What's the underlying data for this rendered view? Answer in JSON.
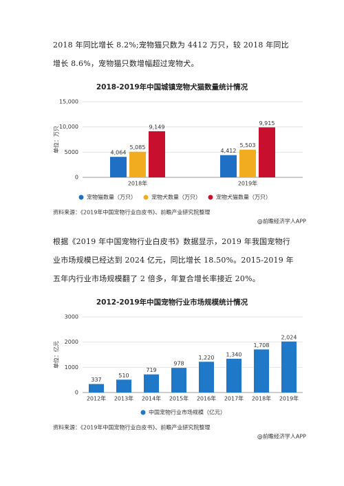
{
  "paragraphs": [
    "2018 年同比增长 8.2%;宠物猫只数为 4412 万只，较 2018 年同比增长 8.6%，宠物猫只数增幅超过宠物犬。",
    "根据《2019 年中国宠物行业白皮书》数据显示，2019 年我国宠物行业市场规模已经达到 2024 亿元，同比增长 18.50%。2015-2019 年五年内行业市场规模翻了 2 倍多，年复合增长率接近 20%。"
  ],
  "chart_data": [
    {
      "type": "bar",
      "title": "2018-2019年中国城镇宠物犬猫数量统计情况",
      "y_label": "单位：万只",
      "categories": [
        "2018年",
        "2019年"
      ],
      "series": [
        {
          "name": "宠物猫数量（万只）",
          "color": "#1f6fc5",
          "values": [
            4064,
            4412
          ],
          "value_labels": [
            "4,064",
            "4,412"
          ]
        },
        {
          "name": "宠物犬数量（万只）",
          "color": "#f2ac1f",
          "values": [
            5085,
            5503
          ],
          "value_labels": [
            "5,085",
            "5,503"
          ]
        },
        {
          "name": "宠物犬猫数量（万只）",
          "color": "#c8102e",
          "values": [
            9149,
            9915
          ],
          "value_labels": [
            "9,149",
            "9,915"
          ]
        }
      ],
      "ylim": [
        0,
        15000
      ],
      "yticks": [
        0,
        5000,
        {
          "value": 10000,
          "label": "10,000"
        },
        {
          "value": 15000,
          "label": "15,000"
        }
      ],
      "grid": true,
      "source": "资料来源：《2019年中国宠物行业白皮书》、前瞻产业研究院整理",
      "credit": "@前瞻经济学人APP"
    },
    {
      "type": "bar",
      "title": "2012-2019年中国宠物行业市场规模统计情况",
      "y_label": "单位：亿元",
      "categories": [
        "2012年",
        "2013年",
        "2014年",
        "2015年",
        "2016年",
        "2017年",
        "2018年",
        "2019年"
      ],
      "series": [
        {
          "name": "中国宠物行业市场规模（亿元）",
          "color": "#1f78c8",
          "values": [
            337,
            510,
            719,
            978,
            1220,
            1340,
            1708,
            2024
          ],
          "value_labels": [
            "337",
            "510",
            "719",
            "978",
            "1,220",
            "1,340",
            "1,708",
            "2,024"
          ]
        }
      ],
      "ylim": [
        0,
        3000
      ],
      "yticks": [
        0,
        1000,
        2000,
        3000
      ],
      "grid": true,
      "source": "资料来源：《2019年中国宠物行业白皮书》、前瞻产业研究院整理",
      "credit": "@前瞻经济学人APP"
    }
  ]
}
